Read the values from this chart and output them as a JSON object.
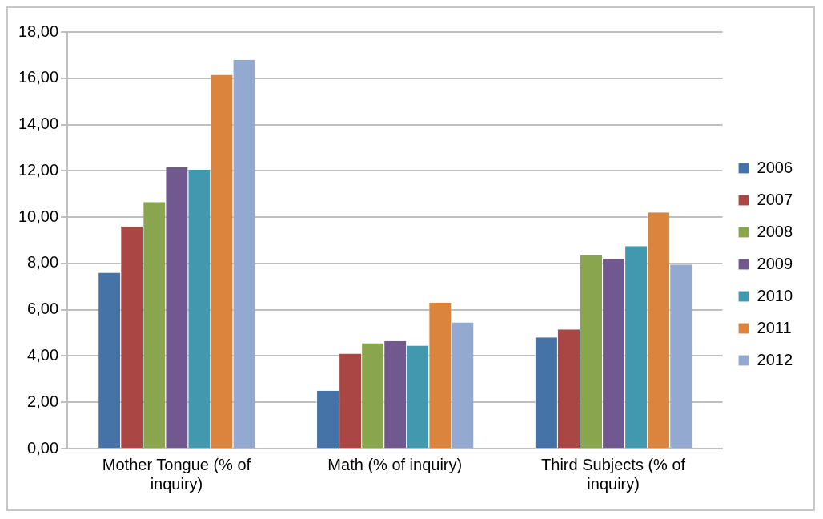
{
  "chart_data": {
    "type": "bar",
    "categories": [
      "Mother Tongue (% of inquiry)",
      "Math (% of inquiry)",
      "Third Subjects (% of inquiry)"
    ],
    "series": [
      {
        "name": "2006",
        "color": "#4572a7",
        "values": [
          7.6,
          2.5,
          4.8
        ]
      },
      {
        "name": "2007",
        "color": "#aa4643",
        "values": [
          9.6,
          4.1,
          5.15
        ]
      },
      {
        "name": "2008",
        "color": "#89a54e",
        "values": [
          10.65,
          4.55,
          8.35
        ]
      },
      {
        "name": "2009",
        "color": "#71588f",
        "values": [
          12.15,
          4.65,
          8.2
        ]
      },
      {
        "name": "2010",
        "color": "#4198af",
        "values": [
          12.05,
          4.45,
          8.75
        ]
      },
      {
        "name": "2011",
        "color": "#db843d",
        "values": [
          16.15,
          6.3,
          10.2
        ]
      },
      {
        "name": "2012",
        "color": "#93a9cf",
        "values": [
          16.8,
          5.45,
          7.95
        ]
      }
    ],
    "ylim": [
      0,
      18
    ],
    "yticks": [
      {
        "value": 0,
        "label": "0,00"
      },
      {
        "value": 2,
        "label": "2,00"
      },
      {
        "value": 4,
        "label": "4,00"
      },
      {
        "value": 6,
        "label": "6,00"
      },
      {
        "value": 8,
        "label": "8,00"
      },
      {
        "value": 10,
        "label": "10,00"
      },
      {
        "value": 12,
        "label": "12,00"
      },
      {
        "value": 14,
        "label": "14,00"
      },
      {
        "value": 16,
        "label": "16,00"
      },
      {
        "value": 18,
        "label": "18,00"
      }
    ],
    "grid": "y",
    "legend": "right"
  }
}
